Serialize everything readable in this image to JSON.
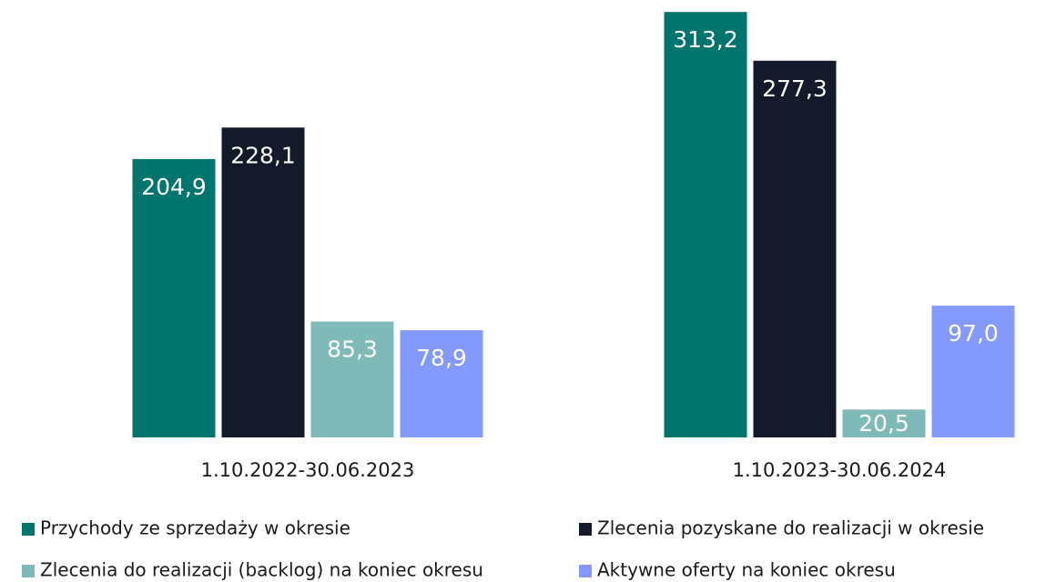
{
  "chart_data": {
    "type": "bar",
    "categories": [
      "1.10.2022-30.06.2023",
      "1.10.2023-30.06.2024"
    ],
    "series": [
      {
        "name": "Przychody ze sprzedaży w okresie",
        "color": "#00756e",
        "values": [
          204.9,
          313.2
        ],
        "value_labels": [
          "204,9",
          "313,2"
        ]
      },
      {
        "name": "Zlecenia pozyskane do realizacji w okresie",
        "color": "#141a2a",
        "values": [
          228.1,
          277.3
        ],
        "value_labels": [
          "228,1",
          "277,3"
        ]
      },
      {
        "name": "Zlecenia do realizacji (backlog) na koniec okresu",
        "color": "#80bab8",
        "values": [
          85.3,
          20.5
        ],
        "value_labels": [
          "85,3",
          "20,5"
        ]
      },
      {
        "name": "Aktywne oferty na koniec okresu",
        "color": "#8399fb",
        "values": [
          78.9,
          97.0
        ],
        "value_labels": [
          "78,9",
          "97,0"
        ]
      }
    ],
    "ylim": [
      0,
      320
    ],
    "legend": "bottom"
  }
}
